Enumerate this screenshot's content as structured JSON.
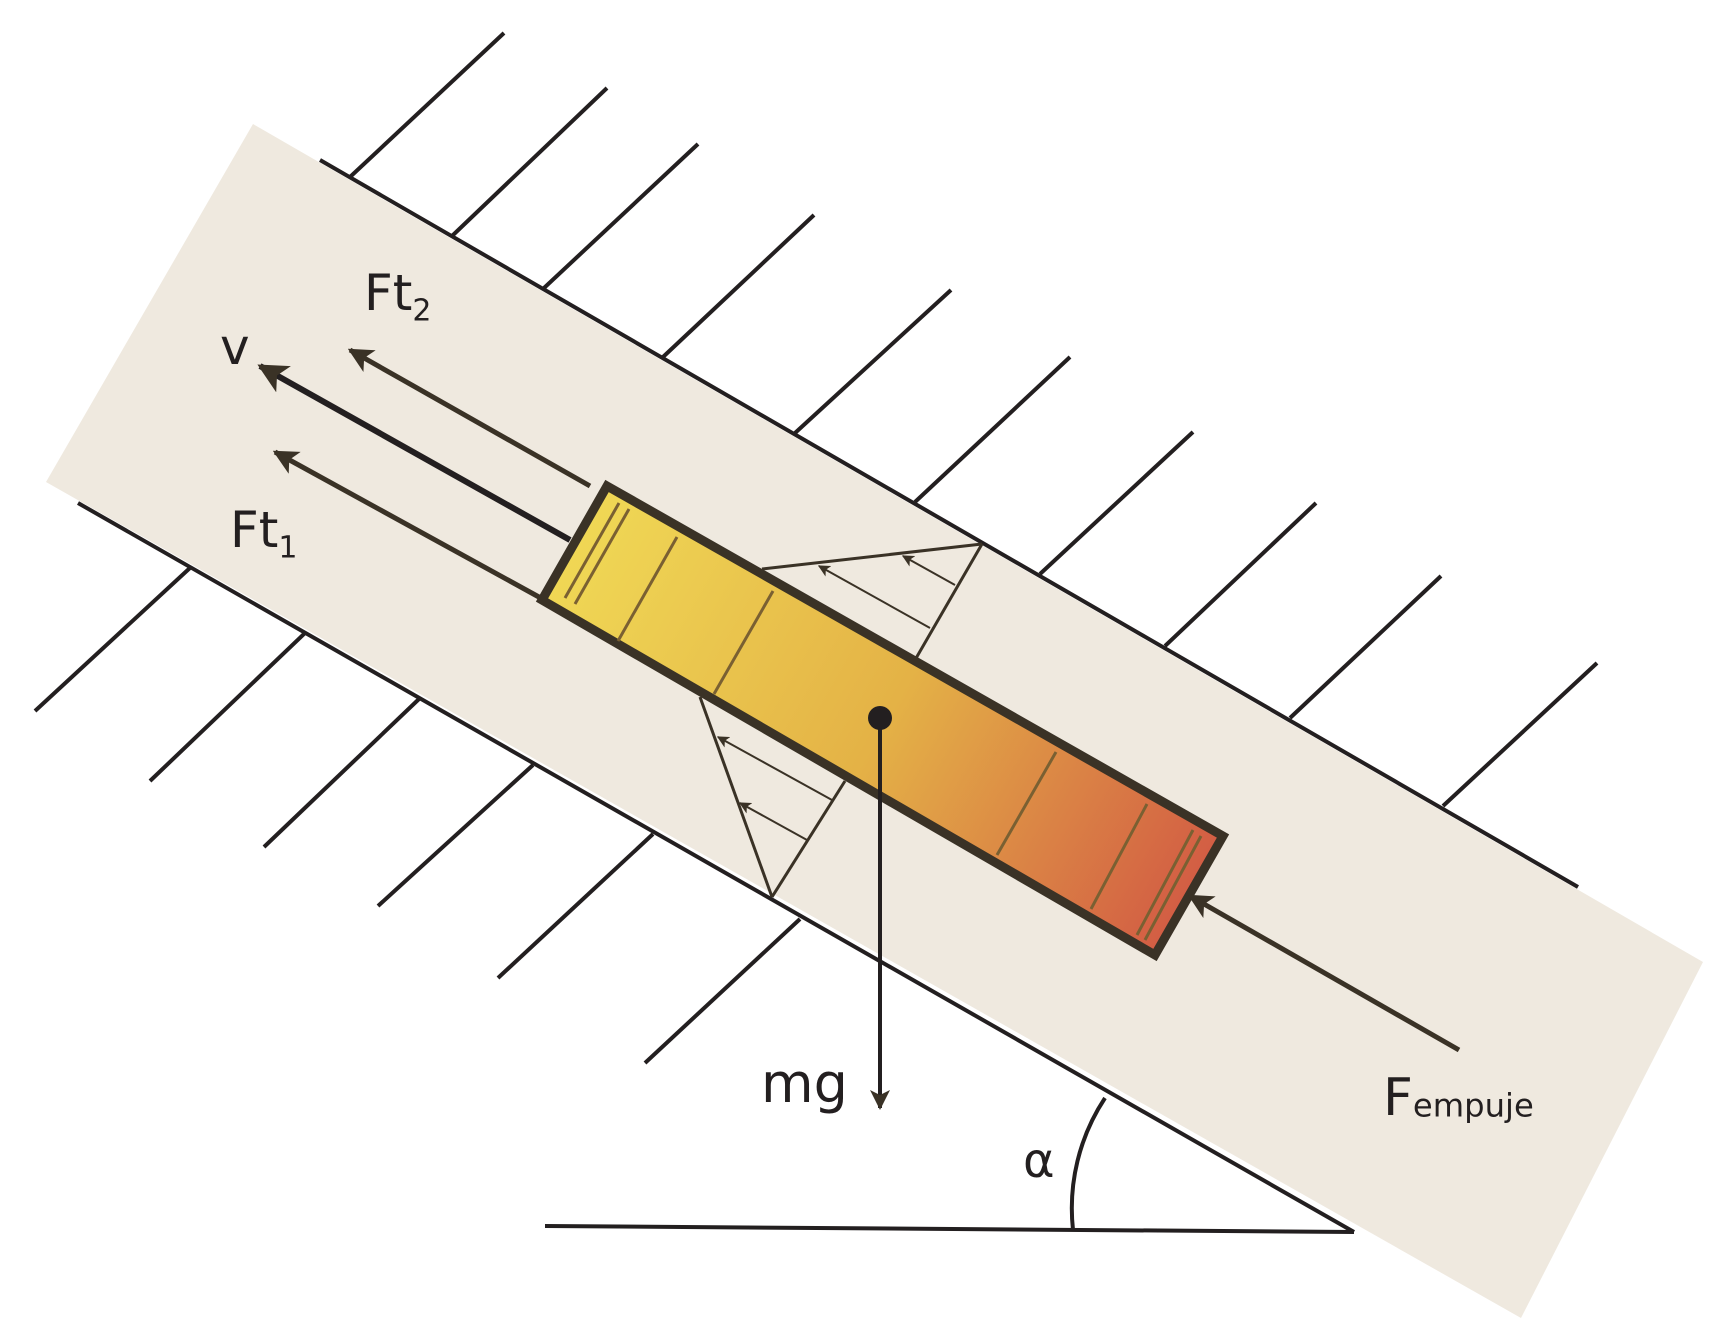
{
  "labels": {
    "ft2": {
      "main": "Ft",
      "sub": "2"
    },
    "v": "v",
    "ft1": {
      "main": "Ft",
      "sub": "1"
    },
    "mg": "mg",
    "alpha": "α",
    "fempuje": {
      "main": "F",
      "sub": "empuje"
    }
  },
  "colors": {
    "ink": "#231f20",
    "arrow": "#3a3226",
    "band": "#efe9df",
    "gradient_start": "#f0d855",
    "gradient_mid": "#e4b246",
    "gradient_end": "#d25a44"
  }
}
